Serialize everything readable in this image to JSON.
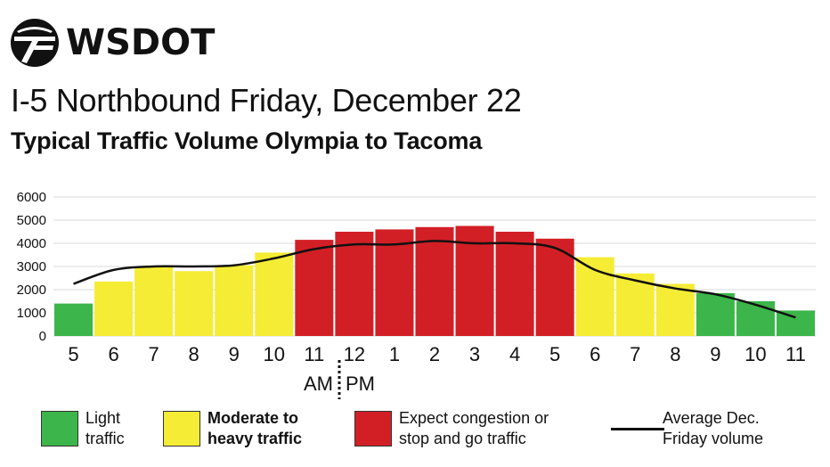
{
  "logo": {
    "text": "WSDOT",
    "icon": "wsdot-logo-icon"
  },
  "title": "I-5 Northbound Friday, December 22",
  "subtitle": "Typical Traffic Volume Olympia to Tacoma",
  "colors": {
    "light": "#3cb54a",
    "moderate": "#f5ec35",
    "congestion": "#d21f26",
    "line": "#111111",
    "grid": "#d9d9d9"
  },
  "chart_data": {
    "type": "bar",
    "categories": [
      "5",
      "6",
      "7",
      "8",
      "9",
      "10",
      "11",
      "12",
      "1",
      "2",
      "3",
      "4",
      "5",
      "6",
      "7",
      "8",
      "9",
      "10",
      "11"
    ],
    "values": [
      1400,
      2350,
      3000,
      2800,
      3050,
      3600,
      4150,
      4500,
      4600,
      4700,
      4750,
      4500,
      4200,
      3400,
      2700,
      2250,
      1850,
      1500,
      1100
    ],
    "levels": [
      "light",
      "moderate",
      "moderate",
      "moderate",
      "moderate",
      "moderate",
      "congestion",
      "congestion",
      "congestion",
      "congestion",
      "congestion",
      "congestion",
      "congestion",
      "moderate",
      "moderate",
      "moderate",
      "light",
      "light",
      "light"
    ],
    "average_line": [
      2250,
      2850,
      3000,
      3000,
      3050,
      3350,
      3750,
      3950,
      3950,
      4100,
      4000,
      4000,
      3800,
      2850,
      2400,
      2050,
      1800,
      1350,
      800
    ],
    "yticks": [
      0,
      1000,
      2000,
      3000,
      4000,
      5000,
      6000
    ],
    "ylim": [
      0,
      6000
    ],
    "am_label": "AM",
    "pm_label": "PM",
    "grid": true,
    "legend_position": "bottom"
  },
  "legend": [
    {
      "key": "light",
      "label": "Light\ntraffic"
    },
    {
      "key": "moderate",
      "label": "Moderate to\nheavy traffic"
    },
    {
      "key": "congestion",
      "label": "Expect congestion or\nstop and go traffic"
    },
    {
      "key": "line",
      "label": "Average Dec.\nFriday volume"
    }
  ]
}
